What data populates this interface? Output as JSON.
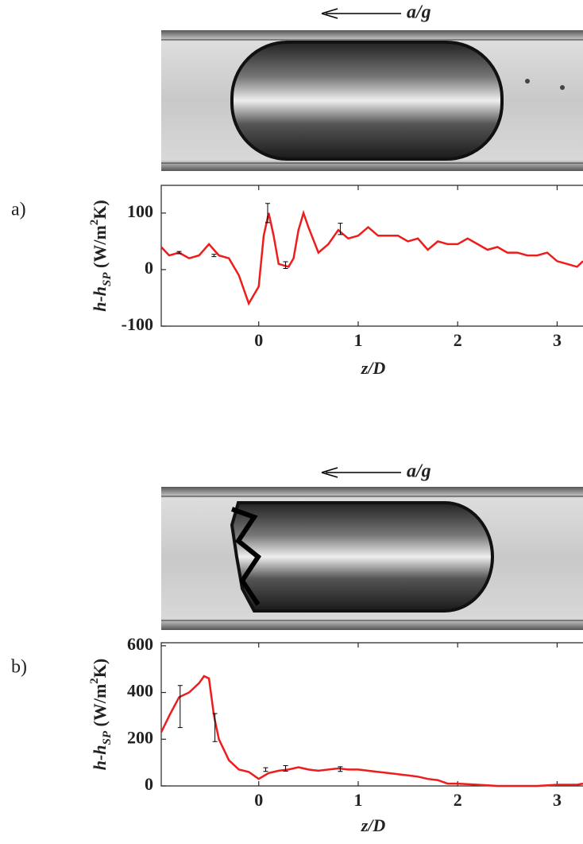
{
  "chart_data": [
    {
      "type": "line",
      "panel_label": "a)",
      "annotation": "a/g",
      "xlabel": "z/D",
      "ylabel": [
        "h-h",
        "SP",
        " (W/m",
        "2",
        "K)"
      ],
      "xlim": [
        -0.98,
        3.26
      ],
      "xticks": [
        0,
        1,
        2,
        3
      ],
      "ylim": [
        -100,
        149
      ],
      "yticks": [
        -100,
        0,
        100
      ],
      "x": [
        -0.98,
        -0.9,
        -0.8,
        -0.7,
        -0.6,
        -0.5,
        -0.4,
        -0.3,
        -0.2,
        -0.1,
        0,
        0.05,
        0.1,
        0.15,
        0.2,
        0.3,
        0.35,
        0.4,
        0.45,
        0.5,
        0.6,
        0.7,
        0.8,
        0.9,
        1.0,
        1.1,
        1.2,
        1.3,
        1.4,
        1.5,
        1.6,
        1.7,
        1.8,
        1.9,
        2.0,
        2.1,
        2.2,
        2.3,
        2.4,
        2.5,
        2.6,
        2.7,
        2.8,
        2.9,
        3.0,
        3.1,
        3.2,
        3.26
      ],
      "series": [
        {
          "color": "#ee1c1c",
          "values": [
            40,
            25,
            30,
            20,
            25,
            45,
            25,
            20,
            -10,
            -60,
            -30,
            60,
            100,
            60,
            10,
            5,
            20,
            70,
            100,
            75,
            30,
            45,
            70,
            55,
            60,
            75,
            60,
            60,
            60,
            50,
            55,
            35,
            50,
            45,
            45,
            55,
            45,
            35,
            40,
            30,
            30,
            25,
            25,
            30,
            15,
            10,
            5,
            15
          ]
        }
      ],
      "errorbars": {
        "x": [
          -0.8,
          -0.45,
          0.09,
          0.27,
          0.82
        ],
        "values": [
          30,
          25,
          100,
          8,
          72
        ],
        "errors": [
          2,
          2,
          17,
          6,
          10
        ]
      }
    },
    {
      "type": "line",
      "panel_label": "b)",
      "annotation": "a/g",
      "xlabel": "z/D",
      "ylabel": [
        "h-h",
        "SP",
        " (W/m",
        "2",
        "K)"
      ],
      "xlim": [
        -0.98,
        3.26
      ],
      "xticks": [
        0,
        1,
        2,
        3
      ],
      "ylim": [
        0,
        613
      ],
      "yticks": [
        0,
        200,
        400,
        600
      ],
      "x": [
        -0.98,
        -0.9,
        -0.8,
        -0.7,
        -0.6,
        -0.55,
        -0.5,
        -0.45,
        -0.4,
        -0.3,
        -0.2,
        -0.1,
        0,
        0.1,
        0.2,
        0.3,
        0.4,
        0.5,
        0.6,
        0.7,
        0.8,
        0.9,
        1.0,
        1.1,
        1.2,
        1.3,
        1.4,
        1.5,
        1.6,
        1.7,
        1.8,
        1.9,
        2.0,
        2.2,
        2.4,
        2.6,
        2.8,
        3.0,
        3.2,
        3.26
      ],
      "series": [
        {
          "color": "#ee1c1c",
          "values": [
            230,
            300,
            380,
            400,
            440,
            470,
            460,
            300,
            200,
            110,
            70,
            60,
            30,
            55,
            65,
            70,
            80,
            70,
            65,
            70,
            75,
            70,
            70,
            65,
            60,
            55,
            50,
            45,
            40,
            30,
            25,
            10,
            10,
            5,
            0,
            0,
            0,
            5,
            5,
            10
          ]
        }
      ],
      "errorbars": {
        "x": [
          -0.79,
          -0.44,
          0.07,
          0.27,
          0.82
        ],
        "values": [
          340,
          250,
          70,
          75,
          72
        ],
        "errors": [
          90,
          60,
          8,
          12,
          10
        ]
      }
    }
  ]
}
